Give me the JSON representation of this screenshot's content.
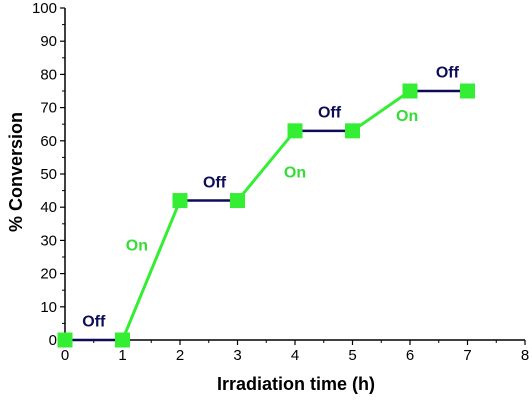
{
  "chart_data": {
    "type": "line",
    "xlabel": "Irradiation time (h)",
    "ylabel": "% Conversion",
    "xlim": [
      0,
      8
    ],
    "ylim": [
      0,
      100
    ],
    "xticks": [
      "0",
      "1",
      "2",
      "3",
      "4",
      "5",
      "6",
      "7",
      "8"
    ],
    "yticks": [
      "0",
      "10",
      "20",
      "30",
      "40",
      "50",
      "60",
      "70",
      "80",
      "90",
      "100"
    ],
    "grid": false,
    "series": [
      {
        "color": "#33ee33",
        "x": [
          0,
          1,
          2,
          3,
          4,
          5,
          6,
          7
        ],
        "y": [
          0,
          0,
          42,
          42,
          63,
          63,
          75,
          75
        ]
      }
    ],
    "off_color": "#0d0d55",
    "on_color": "#33dd33",
    "annotations": [
      {
        "text": "Off",
        "kind": "off",
        "x": 0.5,
        "y": 4
      },
      {
        "text": "On",
        "kind": "on",
        "x": 1.25,
        "y": 27
      },
      {
        "text": "Off",
        "kind": "off",
        "x": 2.6,
        "y": 46
      },
      {
        "text": "On",
        "kind": "on",
        "x": 4.0,
        "y": 49
      },
      {
        "text": "Off",
        "kind": "off",
        "x": 4.6,
        "y": 67
      },
      {
        "text": "On",
        "kind": "on",
        "x": 5.95,
        "y": 66
      },
      {
        "text": "Off",
        "kind": "off",
        "x": 6.65,
        "y": 79
      }
    ]
  }
}
